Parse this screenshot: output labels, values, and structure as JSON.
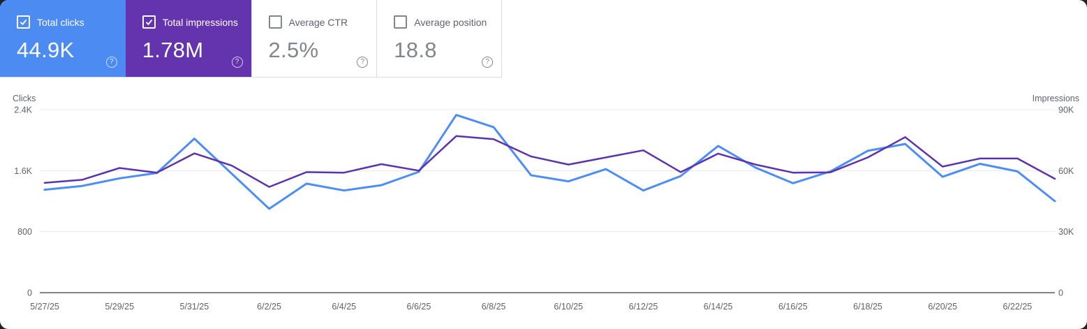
{
  "cards": [
    {
      "label": "Total clicks",
      "value": "44.9K",
      "checked": true,
      "bg": "#4c8bf2",
      "fg": "#ffffff"
    },
    {
      "label": "Total impressions",
      "value": "1.78M",
      "checked": true,
      "bg": "#6434af",
      "fg": "#ffffff"
    },
    {
      "label": "Average CTR",
      "value": "2.5%",
      "checked": false,
      "bg": "#ffffff",
      "fg": "#80868b"
    },
    {
      "label": "Average position",
      "value": "18.8",
      "checked": false,
      "bg": "#ffffff",
      "fg": "#80868b"
    }
  ],
  "icons": {
    "help": "?",
    "check": "checkmark"
  },
  "chart_data": {
    "type": "line",
    "x": [
      "5/27/25",
      "5/28/25",
      "5/29/25",
      "5/30/25",
      "5/31/25",
      "6/1/25",
      "6/2/25",
      "6/3/25",
      "6/4/25",
      "6/5/25",
      "6/6/25",
      "6/7/25",
      "6/8/25",
      "6/9/25",
      "6/10/25",
      "6/11/25",
      "6/12/25",
      "6/13/25",
      "6/14/25",
      "6/15/25",
      "6/16/25",
      "6/17/25",
      "6/18/25",
      "6/19/25",
      "6/20/25",
      "6/21/25",
      "6/22/25",
      "6/23/25"
    ],
    "x_label_every": 2,
    "series": [
      {
        "name": "Clicks",
        "axis": "left",
        "color": "#4d8ef5",
        "values": [
          1350,
          1400,
          1500,
          1570,
          2020,
          1560,
          1100,
          1430,
          1340,
          1410,
          1585,
          2330,
          2170,
          1540,
          1460,
          1620,
          1340,
          1530,
          1925,
          1640,
          1435,
          1590,
          1860,
          1950,
          1520,
          1690,
          1590,
          1200
        ]
      },
      {
        "name": "Impressions",
        "axis": "right",
        "color": "#5c33ab",
        "values": [
          54000,
          55500,
          61300,
          59000,
          68500,
          62500,
          52000,
          59300,
          59000,
          63200,
          60000,
          77000,
          75500,
          67000,
          63000,
          66500,
          70000,
          59300,
          68400,
          63000,
          59000,
          59200,
          66500,
          76500,
          62000,
          66000,
          66000,
          56000
        ]
      }
    ],
    "left_axis": {
      "title": "Clicks",
      "max": 2400,
      "ticks": [
        {
          "label": "2.4K",
          "value": 2400
        },
        {
          "label": "1.6K",
          "value": 1600
        },
        {
          "label": "800",
          "value": 800
        },
        {
          "label": "0",
          "value": 0
        }
      ]
    },
    "right_axis": {
      "title": "Impressions",
      "max": 90000,
      "ticks": [
        {
          "label": "90K",
          "value": 90000
        },
        {
          "label": "60K",
          "value": 60000
        },
        {
          "label": "30K",
          "value": 30000
        },
        {
          "label": "0",
          "value": 0
        }
      ]
    },
    "grid": "horizontal",
    "legend": "none",
    "grid_color": "#e9eaec",
    "axis_color": "#80868b",
    "text_color": "#5f6368"
  }
}
